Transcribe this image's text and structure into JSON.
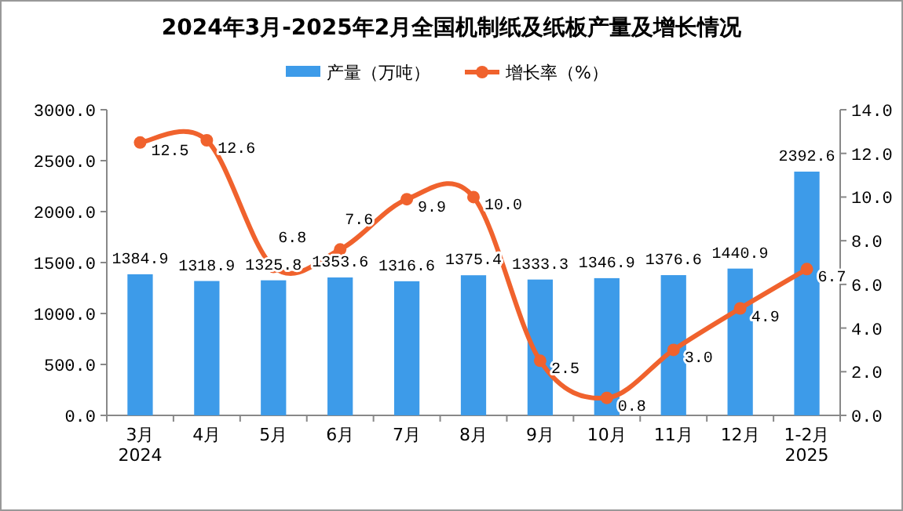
{
  "chart_data": {
    "type": "bar",
    "title": "2024年3月-2025年2月全国机制纸及纸板产量及增长情况",
    "categories": [
      "3月\n2024",
      "4月",
      "5月",
      "6月",
      "7月",
      "8月",
      "9月",
      "10月",
      "11月",
      "12月",
      "1-2月\n2025"
    ],
    "series": [
      {
        "name": "产量（万吨）",
        "color": "#3d9be9",
        "values": [
          1384.9,
          1318.9,
          1325.8,
          1353.6,
          1316.6,
          1375.4,
          1333.3,
          1346.9,
          1376.6,
          1440.9,
          2392.6
        ],
        "value_labels": [
          "1384.9",
          "1318.9",
          "1325.8",
          "1353.6",
          "1316.6",
          "1375.4",
          "1333.3",
          "1346.9",
          "1376.6",
          "1440.9",
          "2392.6"
        ]
      },
      {
        "name": "增长率（%）",
        "type": "line",
        "axis": "y2",
        "color": "#f0622d",
        "marker": "circle",
        "values": [
          12.5,
          12.6,
          6.8,
          7.6,
          9.9,
          10.0,
          2.5,
          0.8,
          3.0,
          4.9,
          6.7
        ],
        "value_labels": [
          "12.5",
          "12.6",
          "6.8",
          "7.6",
          "9.9",
          "10.0",
          "2.5",
          "0.8",
          "3.0",
          "4.9",
          "6.7"
        ]
      }
    ],
    "ylim": [
      0,
      3000
    ],
    "yticks": [
      {
        "value": 0,
        "label": "0.0"
      },
      {
        "value": 500,
        "label": "500.0"
      },
      {
        "value": 1000,
        "label": "1000.0"
      },
      {
        "value": 1500,
        "label": "1500.0"
      },
      {
        "value": 2000,
        "label": "2000.0"
      },
      {
        "value": 2500,
        "label": "2500.0"
      },
      {
        "value": 3000,
        "label": "3000.0"
      }
    ],
    "y2lim": [
      0,
      14
    ],
    "y2ticks": [
      {
        "value": 0,
        "label": "0.0"
      },
      {
        "value": 2,
        "label": "2.0"
      },
      {
        "value": 4,
        "label": "4.0"
      },
      {
        "value": 6,
        "label": "6.0"
      },
      {
        "value": 8,
        "label": "8.0"
      },
      {
        "value": 10,
        "label": "10.0"
      },
      {
        "value": 12,
        "label": "12.0"
      },
      {
        "value": 14,
        "label": "14.0"
      }
    ],
    "legend": "top",
    "grid": false
  }
}
